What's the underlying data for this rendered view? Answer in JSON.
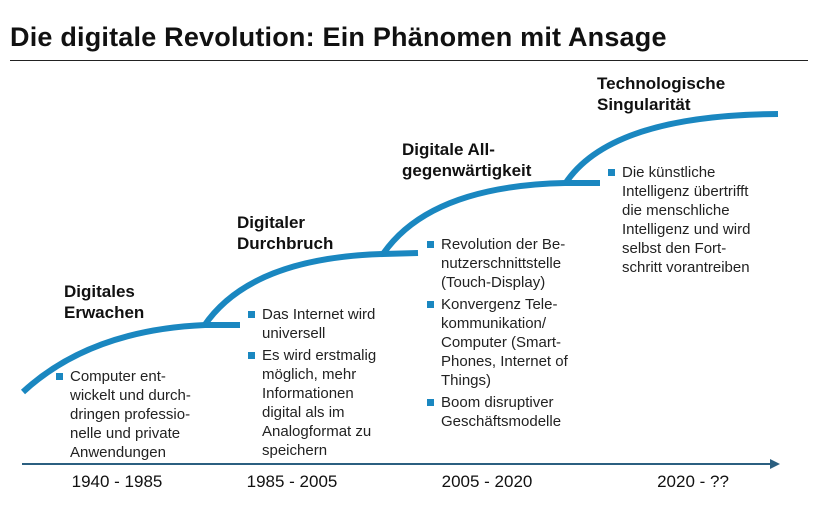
{
  "title": "Die digitale Revolution: Ein Phänomen mit Ansage",
  "accent_color": "#1a87c0",
  "timeline_color": "#2b5f80",
  "phases": [
    {
      "heading": [
        "Digitales",
        "Erwachen"
      ],
      "period": "1940 - 1985",
      "bullets": [
        [
          "Computer ent-",
          "wickelt und durch-",
          "dringen professio-",
          "nelle und private",
          "Anwendungen"
        ]
      ]
    },
    {
      "heading": [
        "Digitaler",
        "Durchbruch"
      ],
      "period": "1985 - 2005",
      "bullets": [
        [
          "Das Internet wird",
          "universell"
        ],
        [
          "Es wird erstmalig",
          "möglich, mehr",
          "Informationen",
          "digital als im",
          "Analogformat zu",
          "speichern"
        ]
      ]
    },
    {
      "heading": [
        "Digitale All-",
        "gegenwärtigkeit"
      ],
      "period": "2005 - 2020",
      "bullets": [
        [
          "Revolution der Be-",
          "nutzerschnittstelle",
          "(Touch-Display)"
        ],
        [
          "Konvergenz Tele-",
          "kommunikation/",
          "Computer (Smart-",
          "Phones, Internet of",
          "Things)"
        ],
        [
          "Boom disruptiver",
          "Geschäftsmodelle"
        ]
      ]
    },
    {
      "heading": [
        "Technologische",
        "Singularität"
      ],
      "period": "2020 - ??",
      "bullets": [
        [
          "Die künstliche",
          "Intelligenz übertrifft",
          "die menschliche",
          "Intelligenz und wird",
          "selbst den Fort-",
          "schritt vorantreiben"
        ]
      ]
    }
  ]
}
